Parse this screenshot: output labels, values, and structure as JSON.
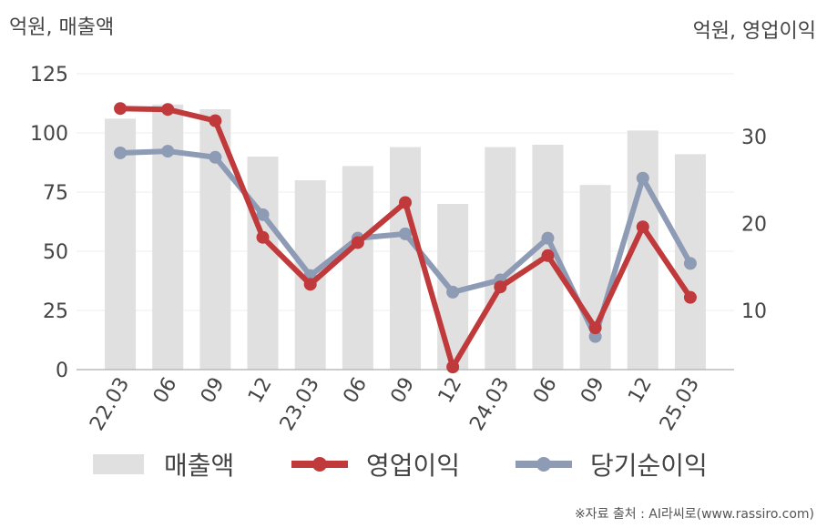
{
  "chart_data": {
    "type": "bar+line",
    "unit_left": "억원, 매출액",
    "unit_right": "억원, 영업이익",
    "categories": [
      "22.03",
      "06",
      "09",
      "12",
      "23.03",
      "06",
      "09",
      "12",
      "24.03",
      "06",
      "09",
      "12",
      "25.03"
    ],
    "bars": {
      "name": "매출액",
      "axis": "left",
      "color": "#e0e0e0",
      "values": [
        106,
        112,
        110,
        90,
        80,
        86,
        94,
        70,
        94,
        95,
        78,
        101,
        91
      ]
    },
    "series": [
      {
        "name": "영업이익",
        "axis": "right",
        "color": "#c0393b",
        "values": [
          33.2,
          33.1,
          31.8,
          18.4,
          13.0,
          17.8,
          22.4,
          3.5,
          12.7,
          16.3,
          8.0,
          19.6,
          11.5
        ]
      },
      {
        "name": "당기순이익",
        "axis": "right",
        "color": "#8d9bb5",
        "values": [
          28.1,
          28.3,
          27.6,
          21.0,
          14.0,
          18.3,
          18.8,
          12.1,
          13.5,
          18.3,
          7.0,
          25.2,
          15.4
        ]
      }
    ],
    "y_left": {
      "min": 0,
      "max": 125,
      "ticks": [
        0,
        25,
        50,
        75,
        100,
        125
      ]
    },
    "y_right": {
      "min": 3.2,
      "max": 37.2,
      "ticks": [
        10,
        20,
        30
      ]
    },
    "grid": true,
    "legend_position": "bottom"
  },
  "legend": {
    "bar": "매출액",
    "line1": "영업이익",
    "line2": "당기순이익"
  },
  "source": "※자료 출처 : AI라씨로(www.rassiro.com)"
}
